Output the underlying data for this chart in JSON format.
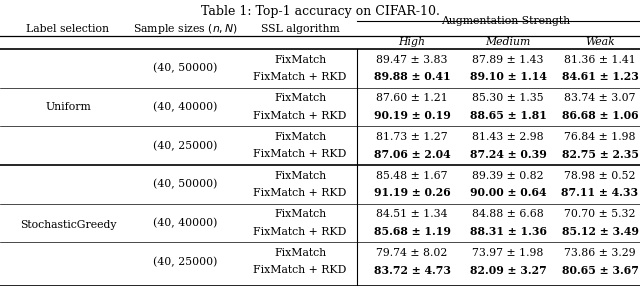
{
  "title": "Table 1: Top-1 accuracy on CIFAR-10.",
  "rows": [
    {
      "sample_size": "(40, 50000)",
      "high1": "89.47 ± 3.83",
      "high2": "89.88 ± 0.41",
      "medium1": "87.89 ± 1.43",
      "medium2": "89.10 ± 1.14",
      "weak1": "81.36 ± 1.41",
      "weak2": "84.61 ± 1.23"
    },
    {
      "sample_size": "(40, 40000)",
      "high1": "87.60 ± 1.21",
      "high2": "90.19 ± 0.19",
      "medium1": "85.30 ± 1.35",
      "medium2": "88.65 ± 1.81",
      "weak1": "83.74 ± 3.07",
      "weak2": "86.68 ± 1.06"
    },
    {
      "sample_size": "(40, 25000)",
      "high1": "81.73 ± 1.27",
      "high2": "87.06 ± 2.04",
      "medium1": "81.43 ± 2.98",
      "medium2": "87.24 ± 0.39",
      "weak1": "76.84 ± 1.98",
      "weak2": "82.75 ± 2.35"
    },
    {
      "sample_size": "(40, 50000)",
      "high1": "85.48 ± 1.67",
      "high2": "91.19 ± 0.26",
      "medium1": "89.39 ± 0.82",
      "medium2": "90.00 ± 0.64",
      "weak1": "78.98 ± 0.52",
      "weak2": "87.11 ± 4.33"
    },
    {
      "sample_size": "(40, 40000)",
      "high1": "84.51 ± 1.34",
      "high2": "85.68 ± 1.19",
      "medium1": "84.88 ± 6.68",
      "medium2": "88.31 ± 1.36",
      "weak1": "70.70 ± 5.32",
      "weak2": "85.12 ± 3.49"
    },
    {
      "sample_size": "(40, 25000)",
      "high1": "79.74 ± 8.02",
      "high2": "83.72 ± 4.73",
      "medium1": "73.97 ± 1.98",
      "medium2": "82.09 ± 3.27",
      "weak1": "73.86 ± 3.29",
      "weak2": "80.65 ± 3.67"
    }
  ],
  "bg_color": "#ffffff",
  "font_size": 7.8,
  "title_font_size": 9.0
}
